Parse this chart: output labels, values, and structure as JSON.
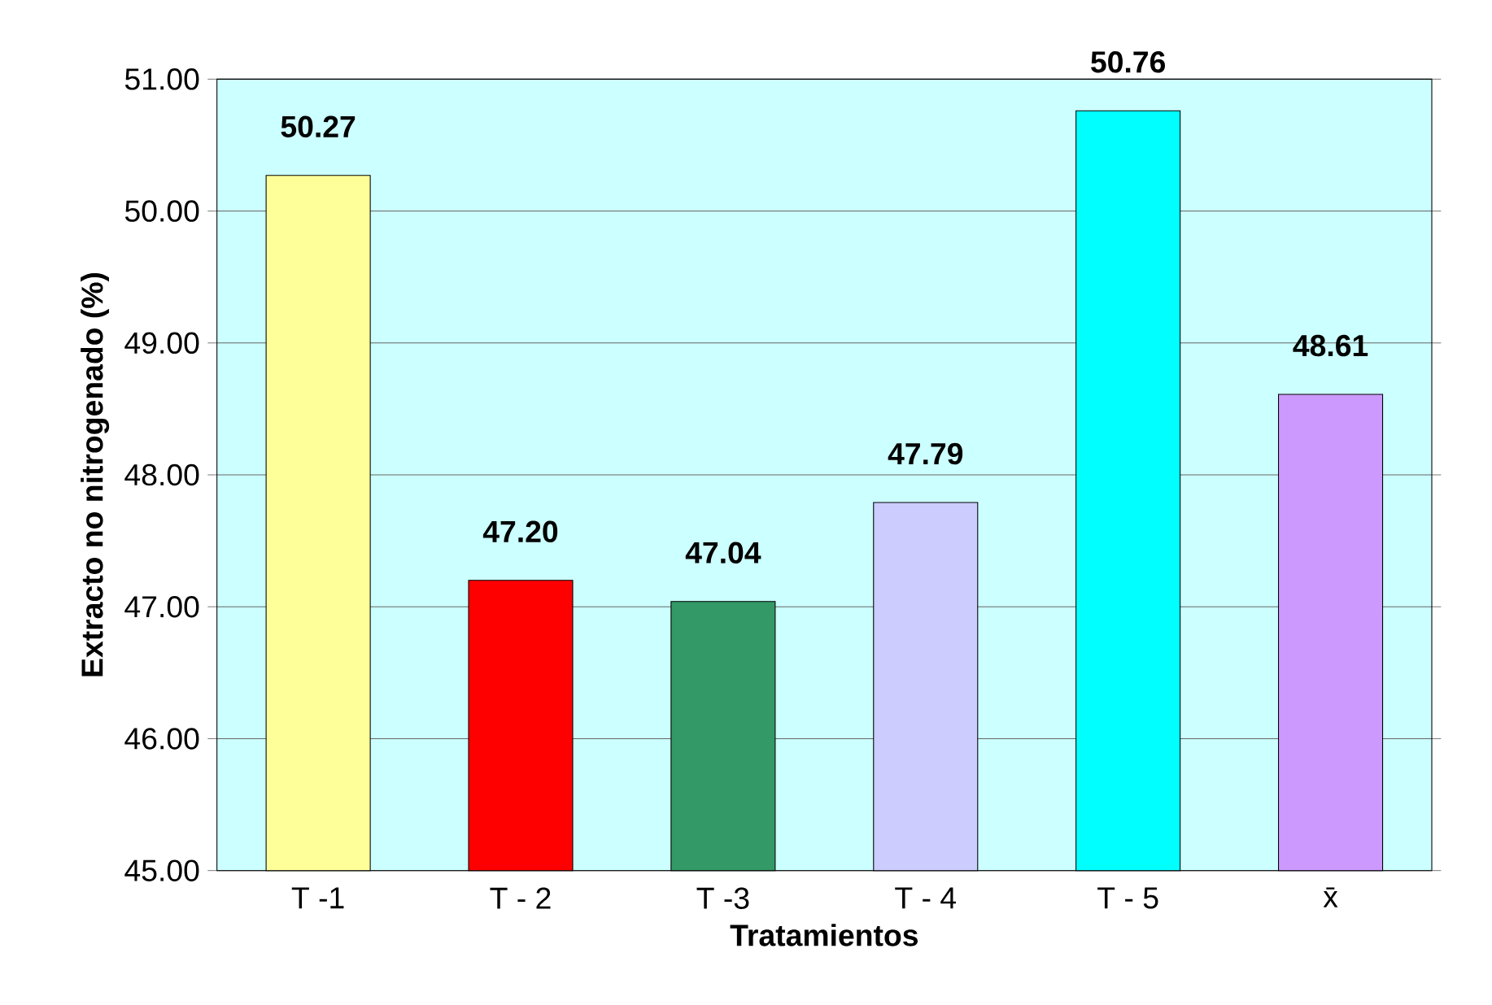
{
  "chart_data": {
    "type": "bar",
    "xlabel": "Tratamientos",
    "ylabel": "Extracto no nitrogenado (%)",
    "categories": [
      "T -1",
      "T - 2",
      "T -3",
      "T - 4",
      "T - 5",
      "x̄"
    ],
    "values": [
      50.27,
      47.2,
      47.04,
      47.79,
      50.76,
      48.61
    ],
    "colors": [
      "#ffff99",
      "#ff0000",
      "#339966",
      "#ccccff",
      "#00ffff",
      "#cc99ff"
    ],
    "value_labels": [
      "50.27",
      "47.20",
      "47.04",
      "47.79",
      "50.76",
      "48.61"
    ],
    "ylim": [
      45,
      51
    ],
    "yticks": [
      {
        "value": 45,
        "label": "45.00"
      },
      {
        "value": 46,
        "label": "46.00"
      },
      {
        "value": 47,
        "label": "47.00"
      },
      {
        "value": 48,
        "label": "48.00"
      },
      {
        "value": 49,
        "label": "49.00"
      },
      {
        "value": 50,
        "label": "50.00"
      },
      {
        "value": 51,
        "label": "51.00"
      }
    ],
    "grid": "y"
  }
}
